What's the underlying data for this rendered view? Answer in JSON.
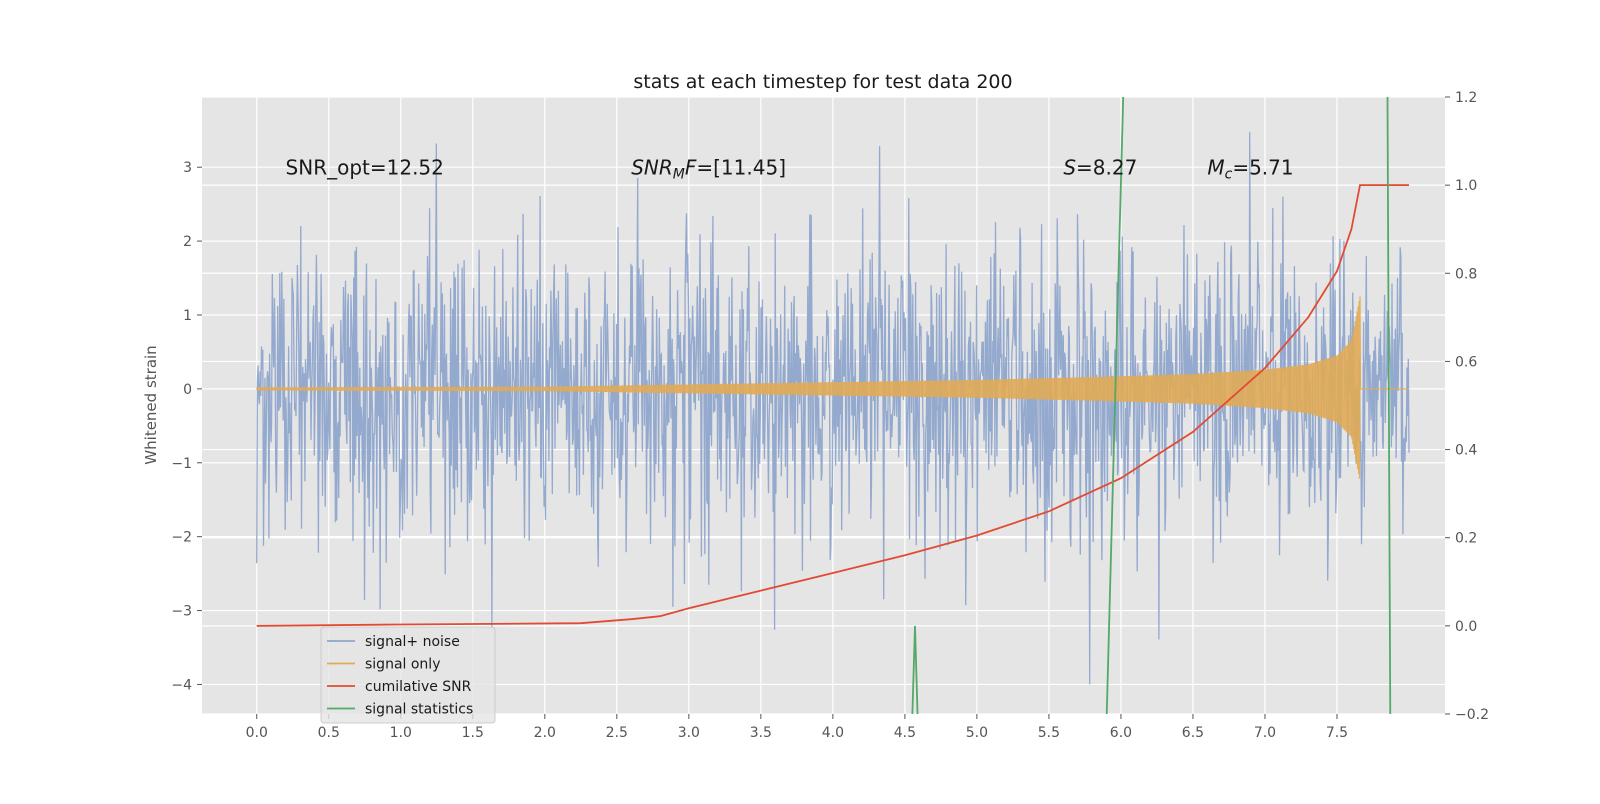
{
  "chart_data": {
    "type": "line",
    "title": "stats at each timestep for test data 200",
    "xlabel": "",
    "ylabel": "Whitened strain",
    "y2label": "",
    "xlim": [
      -0.38,
      8.25
    ],
    "ylim": [
      -4.4,
      3.95
    ],
    "y2lim": [
      -0.2,
      1.2
    ],
    "x_ticks": [
      "0.0",
      "0.5",
      "1.0",
      "1.5",
      "2.0",
      "2.5",
      "3.0",
      "3.5",
      "4.0",
      "4.5",
      "5.0",
      "5.5",
      "6.0",
      "6.5",
      "7.0",
      "7.5"
    ],
    "y_ticks": [
      "3",
      "2",
      "1",
      "0",
      "−1",
      "−2",
      "−3",
      "−4"
    ],
    "y2_ticks": [
      "1.2",
      "1.0",
      "0.8",
      "0.6",
      "0.4",
      "0.2",
      "0.0",
      "−0.2"
    ],
    "grid": true,
    "legend_position": "lower-left",
    "annotations": [
      {
        "text": "SNR_opt=12.52",
        "x": 0.2,
        "y": 2.9
      },
      {
        "text_parts": [
          {
            "t": "SNR",
            "italic": true
          },
          {
            "t": "M",
            "italic": true,
            "sub": true
          },
          {
            "t": "F",
            "italic": true
          },
          {
            "t": "=[11.45]",
            "italic": false
          }
        ],
        "x": 2.6,
        "y": 2.9
      },
      {
        "text_parts": [
          {
            "t": "S",
            "italic": true
          },
          {
            "t": "=8.27",
            "italic": false
          }
        ],
        "x": 5.6,
        "y": 2.9
      },
      {
        "text_parts": [
          {
            "t": "M",
            "italic": true
          },
          {
            "t": "c",
            "italic": true,
            "sub": true
          },
          {
            "t": "=5.71",
            "italic": false
          }
        ],
        "x": 6.6,
        "y": 2.9
      }
    ],
    "series": [
      {
        "name": "signal+ noise",
        "axis": "left",
        "color": "#8fa5cc",
        "x_range": [
          0.0,
          8.0
        ],
        "amplitude": 1.0
      },
      {
        "name": "signal only",
        "axis": "left",
        "color": "#e0aa55",
        "x_range": [
          0.0,
          8.0
        ],
        "chirp_end": 7.66,
        "envelope": {
          "x": [
            0.0,
            2.0,
            3.0,
            4.0,
            5.0,
            6.0,
            6.5,
            7.0,
            7.3,
            7.5,
            7.6,
            7.66
          ],
          "y": [
            0.02,
            0.03,
            0.06,
            0.09,
            0.12,
            0.17,
            0.2,
            0.26,
            0.33,
            0.45,
            0.65,
            1.25
          ]
        }
      },
      {
        "name": "cumilative SNR",
        "axis": "right",
        "color": "#e24a33",
        "x": [
          0.0,
          1.0,
          2.25,
          2.6,
          2.8,
          3.0,
          3.5,
          4.0,
          4.5,
          5.0,
          5.5,
          6.0,
          6.5,
          7.0,
          7.3,
          7.5,
          7.6,
          7.66,
          8.0
        ],
        "y": [
          0.0,
          0.003,
          0.006,
          0.015,
          0.022,
          0.04,
          0.08,
          0.12,
          0.16,
          0.205,
          0.26,
          0.335,
          0.44,
          0.585,
          0.7,
          0.805,
          0.9,
          1.0,
          1.0
        ]
      },
      {
        "name": "signal statistics",
        "axis": "right",
        "color": "#55a868",
        "x": [
          4.55,
          4.57,
          4.59,
          5.9,
          6.02,
          7.85,
          7.87
        ],
        "y": [
          -0.22,
          0.0,
          -0.22,
          -0.22,
          1.25,
          1.25,
          -0.22
        ]
      }
    ]
  }
}
